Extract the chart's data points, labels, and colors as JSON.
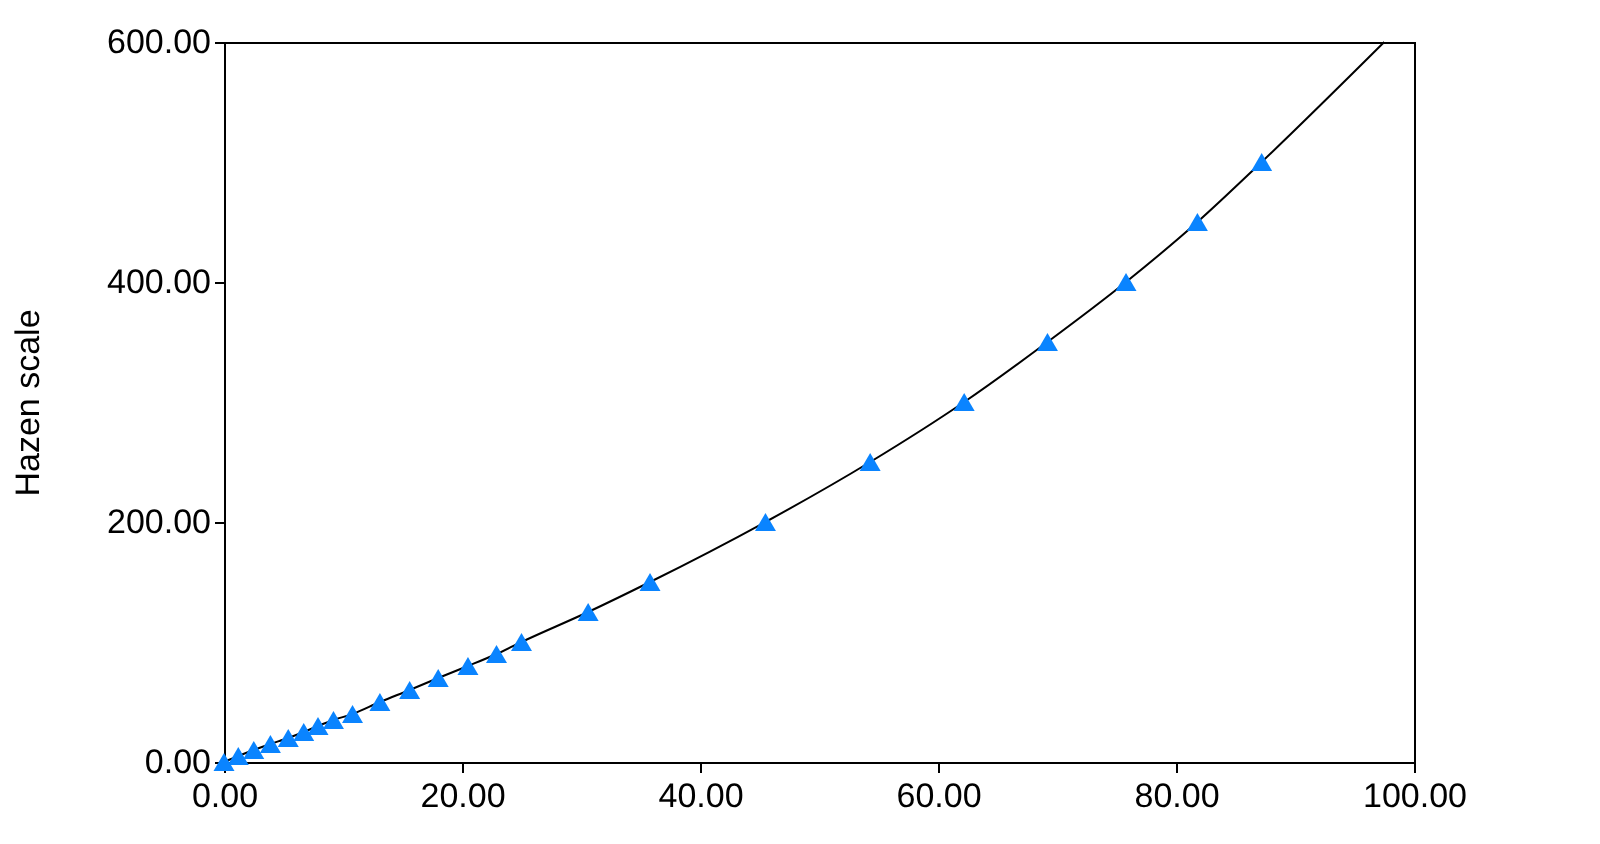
{
  "chart_data": {
    "type": "scatter",
    "ylabel": "Hazen scale",
    "xlim": [
      0,
      100
    ],
    "ylim": [
      0,
      600
    ],
    "xticks": [
      {
        "value": 0,
        "label": "0.00"
      },
      {
        "value": 20,
        "label": "20.00"
      },
      {
        "value": 40,
        "label": "40.00"
      },
      {
        "value": 60,
        "label": "60.00"
      },
      {
        "value": 80,
        "label": "80.00"
      },
      {
        "value": 100,
        "label": "100.00"
      }
    ],
    "yticks": [
      {
        "value": 0,
        "label": "0.00"
      },
      {
        "value": 200,
        "label": "200.00"
      },
      {
        "value": 400,
        "label": "400.00"
      },
      {
        "value": 600,
        "label": "600.00"
      }
    ],
    "grid": false,
    "series": [
      {
        "type": "line",
        "color": "#000000",
        "marker": "none",
        "x": [
          0,
          1.2,
          2.5,
          3.9,
          5.4,
          6.7,
          7.9,
          9.2,
          10.8,
          13.1,
          15.6,
          18.0,
          20.5,
          22.9,
          25.0,
          30.6,
          35.8,
          45.5,
          54.3,
          62.2,
          69.2,
          75.8,
          81.8,
          87.2,
          97.5
        ],
        "values": [
          0,
          5,
          10,
          15,
          20,
          25,
          30,
          35,
          40,
          50,
          60,
          70,
          80,
          90,
          100,
          125,
          150,
          200,
          250,
          300,
          350,
          400,
          450,
          500,
          600
        ]
      },
      {
        "color": "#0a84ff",
        "marker": "triangle",
        "x": [
          0,
          1.2,
          2.5,
          3.9,
          5.4,
          6.7,
          7.9,
          9.2,
          10.8,
          13.1,
          15.6,
          18.0,
          20.5,
          22.9,
          25.0,
          30.6,
          35.8,
          45.5,
          54.3,
          62.2,
          69.2,
          75.8,
          81.8,
          87.2
        ],
        "values": [
          0,
          5,
          10,
          15,
          20,
          25,
          30,
          35,
          40,
          50,
          60,
          70,
          80,
          90,
          100,
          125,
          150,
          200,
          250,
          300,
          350,
          400,
          450,
          500
        ]
      }
    ]
  }
}
